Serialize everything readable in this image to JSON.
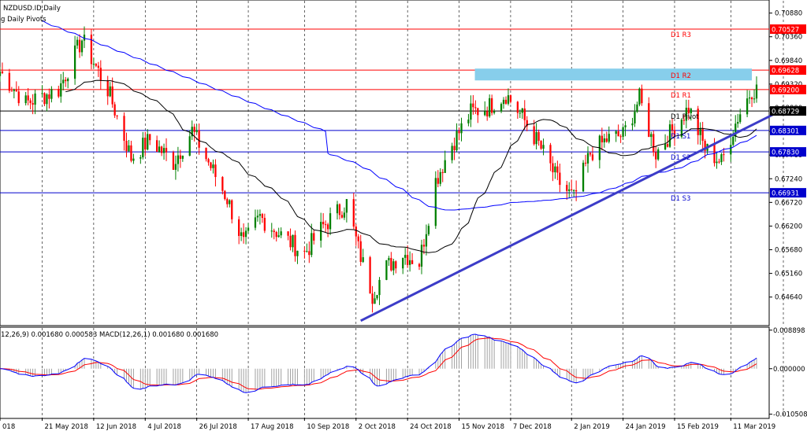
{
  "header": {
    "symbol": "NZDUSD.ID,Daily",
    "indicator": "g Daily Pivots"
  },
  "macd": {
    "title": "12,26,9) 0.001680 0.000583 MACD(12,26,1) 0.001680 0.001680",
    "ticks": [
      "0.008898",
      "0.000000",
      "-0.010508"
    ],
    "tick_values": [
      0.008898,
      0.0,
      -0.010508
    ],
    "range": [
      -0.0113,
      0.0094
    ]
  },
  "chart_data": {
    "type": "candlestick",
    "title": "NZDUSD.ID,Daily",
    "xlabel": "",
    "ylabel": "",
    "ylim": [
      0.6403,
      0.7115
    ],
    "yticks": [
      0.7088,
      0.7036,
      0.6984,
      0.6932,
      0.688,
      0.6828,
      0.6776,
      0.6724,
      0.6672,
      0.662,
      0.6568,
      0.6516,
      0.6464
    ],
    "ytick_labels": [
      "0.70880",
      "0.70360",
      "0.69840",
      "0.69320",
      "0.68800",
      "0.68280",
      "0.67760",
      "0.67240",
      "0.66720",
      "0.66200",
      "0.65680",
      "0.65160",
      "0.64640"
    ],
    "xlim": [
      "2018-05-03",
      "2019-03-22"
    ],
    "xticks": [
      "2018-05-03",
      "2018-05-21",
      "2018-06-12",
      "2018-07-04",
      "2018-07-26",
      "2018-08-17",
      "2018-09-10",
      "2018-10-02",
      "2018-10-24",
      "2018-11-15",
      "2018-12-07",
      "2019-01-02",
      "2019-01-24",
      "2019-02-15",
      "2019-03-11"
    ],
    "xtick_labels": [
      "018",
      "21 May 2018",
      "12 Jun 2018",
      "4 Jul 2018",
      "26 Jul 2018",
      "17 Aug 2018",
      "10 Sep 2018",
      "2 Oct 2018",
      "24 Oct 2018",
      "15 Nov 2018",
      "7 Dec 2018",
      "2 Jan 2019",
      "24 Jan 2019",
      "15 Feb 2019",
      "11 Mar 2019"
    ],
    "price_anchors": {
      "x": [
        "2018-05-03",
        "2018-05-14",
        "2018-05-28",
        "2018-06-07",
        "2018-06-18",
        "2018-06-28",
        "2018-07-06",
        "2018-07-16",
        "2018-07-24",
        "2018-07-31",
        "2018-08-08",
        "2018-08-15",
        "2018-08-22",
        "2018-08-31",
        "2018-09-10",
        "2018-09-18",
        "2018-09-28",
        "2018-10-03",
        "2018-10-09",
        "2018-10-15",
        "2018-10-22",
        "2018-10-29",
        "2018-11-05",
        "2018-11-12",
        "2018-11-20",
        "2018-11-27",
        "2018-12-05",
        "2018-12-12",
        "2018-12-19",
        "2018-12-27",
        "2019-01-03",
        "2019-01-10",
        "2019-01-17",
        "2019-01-24",
        "2019-01-31",
        "2019-02-07",
        "2019-02-14",
        "2019-02-21",
        "2019-02-28",
        "2019-03-07",
        "2019-03-14",
        "2019-03-20"
      ],
      "close": [
        0.696,
        0.689,
        0.692,
        0.703,
        0.692,
        0.677,
        0.681,
        0.676,
        0.683,
        0.676,
        0.668,
        0.658,
        0.664,
        0.66,
        0.656,
        0.662,
        0.667,
        0.657,
        0.647,
        0.653,
        0.656,
        0.654,
        0.672,
        0.68,
        0.687,
        0.688,
        0.691,
        0.686,
        0.68,
        0.672,
        0.668,
        0.678,
        0.681,
        0.682,
        0.69,
        0.678,
        0.683,
        0.688,
        0.679,
        0.676,
        0.686,
        0.692
      ]
    },
    "pivots": [
      {
        "name": "D1 R3",
        "value": 0.70527,
        "label": "0.70527"
      },
      {
        "name": "D1 R2",
        "value": 0.69628,
        "label": "0.69628"
      },
      {
        "name": "D1 R1",
        "value": 0.692,
        "label": "0.69200"
      },
      {
        "name": "D1 Pivot",
        "value": 0.68729,
        "label": "0.68729"
      },
      {
        "name": "D1 S1",
        "value": 0.68301,
        "label": "0.68301"
      },
      {
        "name": "D1 S2",
        "value": 0.6783,
        "label": "0.67830"
      },
      {
        "name": "D1 S3",
        "value": 0.66931,
        "label": "0.66931"
      }
    ],
    "resistance_zone": {
      "x": [
        "2018-11-15",
        "2019-03-20"
      ],
      "y": [
        0.694,
        0.6966
      ],
      "color": "#87ceeb"
    },
    "trendline": {
      "x": [
        "2018-10-04",
        "2019-03-29"
      ],
      "y": [
        0.6412,
        0.6865
      ],
      "color": "#3c3cc8"
    },
    "dashed_verticals": [
      "2019-01-24",
      "2019-02-15"
    ],
    "colors": {
      "bull": "#008000",
      "bear": "#ff0000",
      "ma_blue": "#0000ff",
      "ma_black": "#000000",
      "resistance": "#ff0000",
      "support": "#0000cd",
      "pivot": "#000000"
    }
  }
}
